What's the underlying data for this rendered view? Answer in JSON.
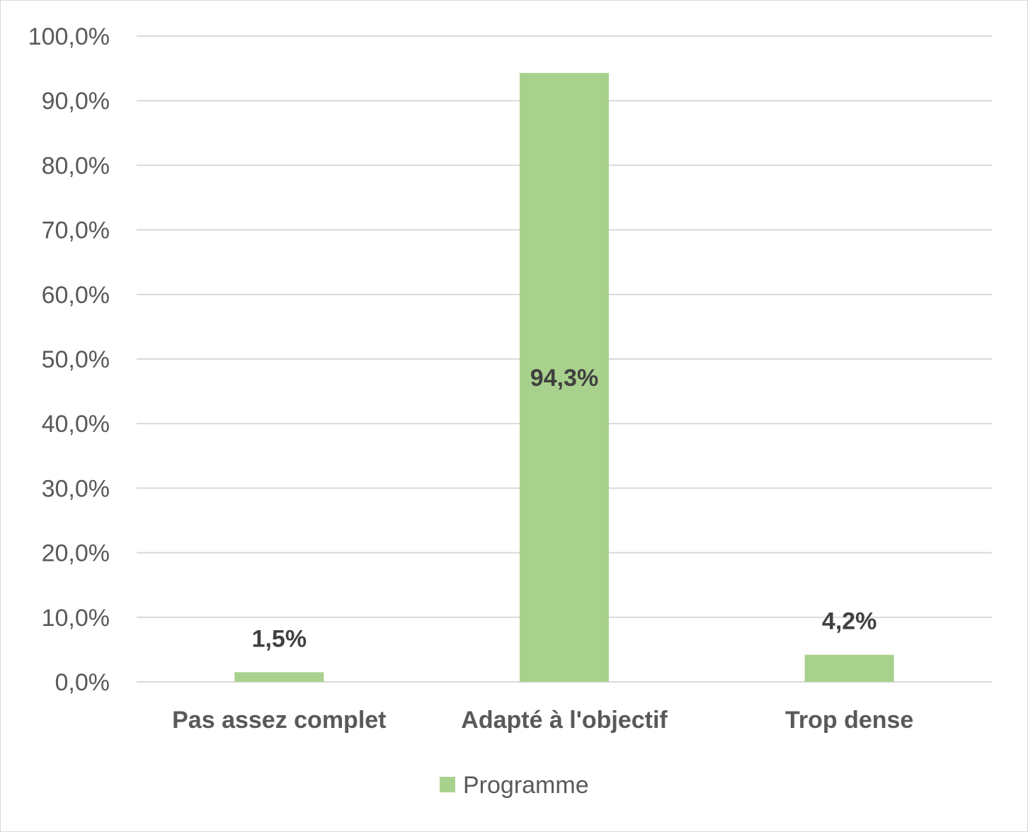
{
  "chart_data": {
    "type": "bar",
    "title": "",
    "xlabel": "",
    "ylabel": "",
    "categories": [
      "Pas assez complet",
      "Adapté à l'objectif",
      "Trop dense"
    ],
    "series": [
      {
        "name": "Programme",
        "values": [
          1.5,
          94.3,
          4.2
        ],
        "labels": [
          "1,5%",
          "94,3%",
          "4,2%"
        ],
        "color": "#a9d18e"
      }
    ],
    "ylim": [
      0,
      100
    ],
    "yticks": [
      0,
      10,
      20,
      30,
      40,
      50,
      60,
      70,
      80,
      90,
      100
    ],
    "ytick_labels": [
      "0,0%",
      "10,0%",
      "20,0%",
      "30,0%",
      "40,0%",
      "50,0%",
      "60,0%",
      "70,0%",
      "80,0%",
      "90,0%",
      "100,0%"
    ],
    "grid": true,
    "legend_position": "bottom"
  }
}
